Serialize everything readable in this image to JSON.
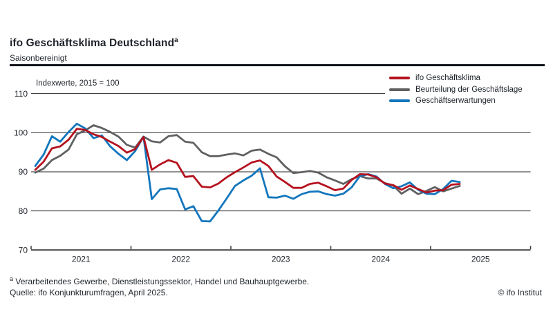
{
  "header": {
    "title": "ifo Geschäftsklima Deutschland",
    "title_superscript": "a",
    "subtitle": "Saisonbereinigt"
  },
  "chart_data": {
    "type": "line",
    "title": "ifo Geschäftsklima Deutschland (a), Saisonbereinigt",
    "axis_note": "Indexwerte, 2015 = 100",
    "x_monthly_range": [
      "2021-01",
      "2025-04"
    ],
    "x_tick_labels": [
      "2021",
      "2022",
      "2023",
      "2024",
      "2025"
    ],
    "y_ticks": [
      110,
      100,
      90,
      80,
      70
    ],
    "ylim": [
      70,
      113
    ],
    "grid": true,
    "legend_position": "top-right",
    "colors": {
      "grid": "#262626",
      "axis": "#3f3f3f",
      "text": "#1e232b"
    },
    "series": [
      {
        "name": "ifo Geschäftsklima",
        "color": "#b5121f",
        "values": [
          90.5,
          92.6,
          96.0,
          96.5,
          98.2,
          101.0,
          100.7,
          99.6,
          98.9,
          97.7,
          96.6,
          94.9,
          95.8,
          98.9,
          90.5,
          91.9,
          93.0,
          92.3,
          88.7,
          88.9,
          86.2,
          86.0,
          87.0,
          88.6,
          89.9,
          91.1,
          92.4,
          92.9,
          91.5,
          88.8,
          87.4,
          85.9,
          85.9,
          86.9,
          87.2,
          86.3,
          85.3,
          85.7,
          87.9,
          89.4,
          89.3,
          88.6,
          87.0,
          86.6,
          85.4,
          86.5,
          85.6,
          84.7,
          85.2,
          85.3,
          86.7,
          86.9
        ]
      },
      {
        "name": "Beurteilung der Geschäftslage",
        "color": "#5f6062",
        "values": [
          89.8,
          90.8,
          93.0,
          94.1,
          95.7,
          99.6,
          100.6,
          101.9,
          101.2,
          100.2,
          99.0,
          96.9,
          96.2,
          99.0,
          97.8,
          97.5,
          99.1,
          99.4,
          97.7,
          97.4,
          95.0,
          94.0,
          94.0,
          94.4,
          94.7,
          94.2,
          95.4,
          95.7,
          94.6,
          93.7,
          91.4,
          89.7,
          89.9,
          90.2,
          89.8,
          88.6,
          87.8,
          86.9,
          88.1,
          88.9,
          88.3,
          88.3,
          87.1,
          86.5,
          84.4,
          85.7,
          84.3,
          85.1,
          86.1,
          85.0,
          85.7,
          86.4
        ]
      },
      {
        "name": "Geschäftserwartungen",
        "color": "#1276bd",
        "values": [
          91.5,
          94.4,
          99.1,
          97.7,
          100.2,
          102.3,
          101.1,
          98.6,
          99.3,
          96.5,
          94.6,
          93.0,
          95.3,
          99.0,
          83.0,
          85.5,
          85.8,
          85.6,
          80.4,
          81.2,
          77.4,
          77.3,
          80.1,
          83.2,
          86.4,
          87.8,
          89.0,
          90.9,
          83.5,
          83.4,
          83.9,
          83.1,
          84.3,
          84.9,
          85.0,
          84.3,
          83.9,
          84.4,
          86.0,
          88.9,
          89.4,
          88.8,
          86.9,
          85.8,
          86.3,
          87.3,
          85.4,
          84.4,
          84.3,
          85.6,
          87.7,
          87.4
        ]
      }
    ]
  },
  "legend": {
    "order_note": "klima, lage, erwartungen"
  },
  "footer": {
    "footnote_superscript": "a",
    "footnote": "Verarbeitendes Gewerbe, Dienstleistungssektor, Handel und Bauhauptgewerbe.",
    "source": "Quelle: ifo Konjunkturumfragen, April 2025.",
    "copyright": "© ifo Institut"
  }
}
